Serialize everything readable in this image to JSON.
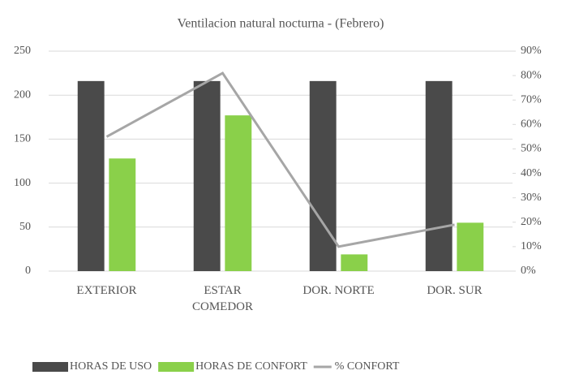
{
  "chart_data": {
    "type": "bar",
    "title": "Ventilacion natural nocturna - (Febrero)",
    "categories": [
      "EXTERIOR",
      "ESTAR COMEDOR",
      "DOR. NORTE",
      "DOR. SUR"
    ],
    "series": [
      {
        "name": "HORAS DE USO",
        "color": "#4a4a4a",
        "type": "bar",
        "values": [
          216,
          216,
          216,
          216
        ]
      },
      {
        "name": "HORAS DE CONFORT",
        "color": "#8ad04a",
        "type": "bar",
        "values": [
          128,
          177,
          19,
          55
        ]
      },
      {
        "name": "% CONFORT",
        "color": "#a6a6a6",
        "type": "line",
        "axis": "y2",
        "values": [
          55,
          81,
          10,
          19
        ]
      }
    ],
    "ylim": [
      0,
      250
    ],
    "yticks": [
      0,
      50,
      100,
      150,
      200,
      250
    ],
    "y2lim": [
      0,
      90
    ],
    "y2ticks": [
      {
        "value": 0,
        "label": "0%"
      },
      {
        "value": 10,
        "label": "10%"
      },
      {
        "value": 20,
        "label": "20%"
      },
      {
        "value": 30,
        "label": "30%"
      },
      {
        "value": 40,
        "label": "40%"
      },
      {
        "value": 50,
        "label": "50%"
      },
      {
        "value": 60,
        "label": "60%"
      },
      {
        "value": 70,
        "label": "70%"
      },
      {
        "value": 80,
        "label": "80%"
      },
      {
        "value": 90,
        "label": "90%"
      }
    ],
    "legend": "bottom"
  }
}
